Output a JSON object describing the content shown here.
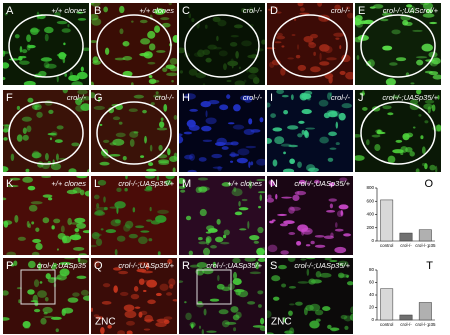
{
  "panels": [
    {
      "label": "A",
      "caption": "+/+ clones",
      "base": "#0b1a05",
      "tint": "#3fd23a",
      "ellipse": true
    },
    {
      "label": "B",
      "caption": "+/+ clones",
      "base": "#3a0d05",
      "tint": "#52d83a",
      "ellipse": true
    },
    {
      "label": "C",
      "caption": "crol-/-",
      "base": "#071204",
      "tint": "#1f4a12",
      "ellipse": true
    },
    {
      "label": "D",
      "caption": "crol-/-",
      "base": "#3c0b06",
      "tint": "#a02a18",
      "ellipse": true
    },
    {
      "label": "E",
      "caption": "crol-/-;UAScrol/+",
      "base": "#0d2008",
      "tint": "#5be04a",
      "ellipse": true
    },
    {
      "label": "F",
      "caption": "crol-/-",
      "base": "#3a1208",
      "tint": "#3fc238",
      "ellipse": true
    },
    {
      "label": "G",
      "caption": "crol-/-",
      "base": "#3a1208",
      "tint": "#47cc3a",
      "ellipse": true
    },
    {
      "label": "H",
      "caption": "crol-/-",
      "base": "#020418",
      "tint": "#2233cc",
      "ellipse": false
    },
    {
      "label": "I",
      "caption": "crol-/-",
      "base": "#030a22",
      "tint": "#3ad08a",
      "ellipse": false
    },
    {
      "label": "J",
      "caption": "crol-/-;UASp35/+",
      "base": "#0a1806",
      "tint": "#4fd43c",
      "ellipse": true
    },
    {
      "label": "K",
      "caption": "+/+ clones",
      "base": "#4a0c08",
      "tint": "#48d83c",
      "ellipse": false
    },
    {
      "label": "L",
      "caption": "crol-/-;UASp35/+",
      "base": "#4a0c08",
      "tint": "#2f9a2a",
      "ellipse": false
    },
    {
      "label": "M",
      "caption": "+/+ clones",
      "base": "#2a0a22",
      "tint": "#4cd840",
      "ellipse": false
    },
    {
      "label": "N",
      "caption": "crol-/-;UASp35/+",
      "base": "#1a0614",
      "tint": "#d04ad0",
      "ellipse": false
    },
    {
      "label": "P",
      "caption": "crol-/-;UASp35",
      "base": "#3a0c08",
      "tint": "#46cc3a",
      "box": true
    },
    {
      "label": "Q",
      "caption": "crol-/-;UASp35/+",
      "base": "#3a0c08",
      "tint": "#c8361e",
      "note": "ZNC"
    },
    {
      "label": "R",
      "caption": "crol-/-;UASp35/+",
      "base": "#200818",
      "tint": "#44c83a",
      "box": true
    },
    {
      "label": "S",
      "caption": "crol-/-;UASp35/+",
      "base": "#0c0a0a",
      "tint": "#3cae34",
      "note": "ZNC"
    }
  ],
  "chart_data": [
    {
      "type": "bar",
      "label": "O",
      "categories": [
        "control",
        "crol-/-",
        "crol-/-;p35"
      ],
      "values": [
        620,
        120,
        170
      ],
      "colors": [
        "#d8d8d8",
        "#707070",
        "#b0b0b0"
      ],
      "ylim": [
        0,
        800
      ],
      "yticks": [
        0,
        200,
        400,
        600,
        800
      ]
    },
    {
      "type": "bar",
      "label": "T",
      "categories": [
        "control",
        "crol-/-",
        "crol-/-;p35"
      ],
      "values": [
        50,
        8,
        28
      ],
      "colors": [
        "#d8d8d8",
        "#707070",
        "#b0b0b0"
      ],
      "ylim": [
        0,
        80
      ],
      "yticks": [
        0,
        20,
        40,
        60,
        80
      ]
    }
  ]
}
